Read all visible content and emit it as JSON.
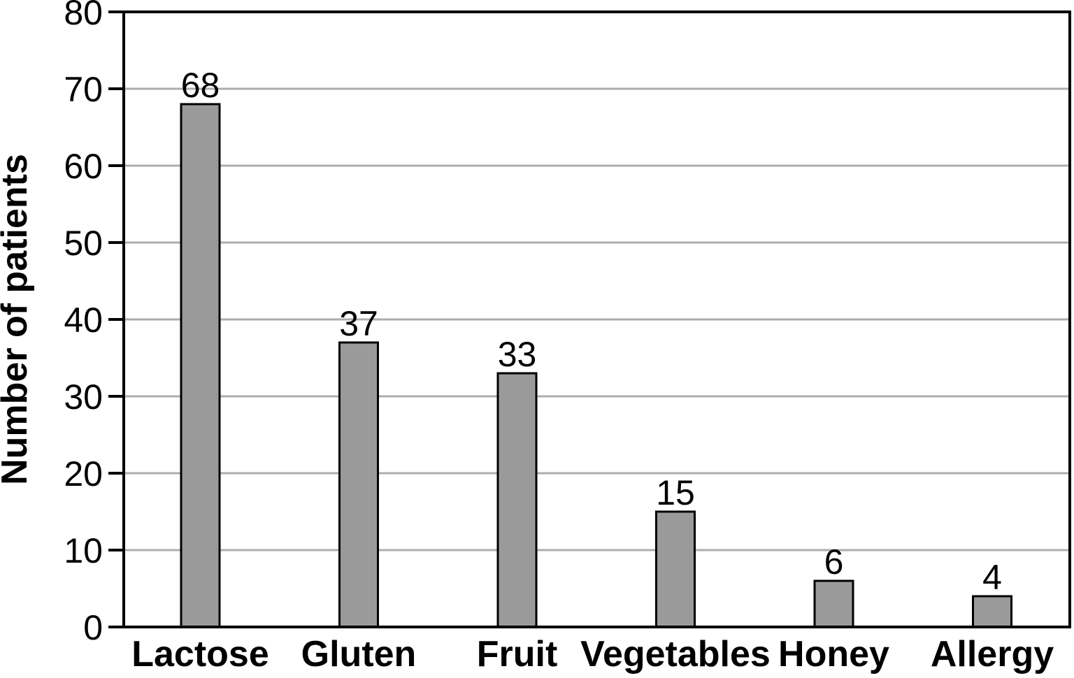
{
  "chart_data": {
    "type": "bar",
    "title": "",
    "xlabel": "",
    "ylabel": "Number of patients",
    "categories": [
      "Lactose",
      "Gluten",
      "Fruit",
      "Vegetables",
      "Honey",
      "Allergy"
    ],
    "values": [
      68,
      37,
      33,
      15,
      6,
      4
    ],
    "value_labels": [
      "68",
      "37",
      "33",
      "15",
      "6",
      "4"
    ],
    "ylim": [
      0,
      80
    ],
    "yticks": [
      0,
      10,
      20,
      30,
      40,
      50,
      60,
      70,
      80
    ],
    "ytick_labels": [
      "0",
      "10",
      "20",
      "30",
      "40",
      "50",
      "60",
      "70",
      "80"
    ],
    "grid": "horizontal-gray-lines",
    "legend": "none",
    "colors": {
      "bar_fill": "#9a9a9a",
      "bar_border": "#000000",
      "gridline": "#adadad",
      "axis": "#000000",
      "background": "#ffffff",
      "text": "#000000"
    }
  }
}
